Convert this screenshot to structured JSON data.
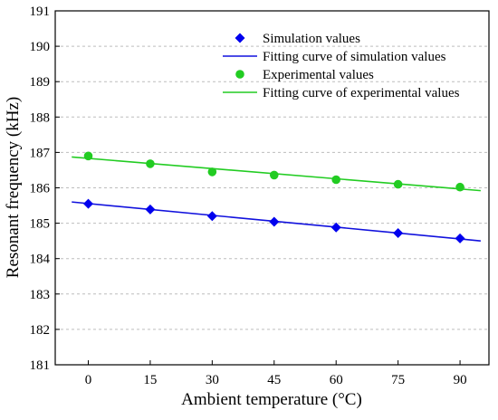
{
  "chart_data": {
    "type": "line",
    "xlabel": "Ambient temperature (°C)",
    "ylabel": "Resonant frequency (kHz)",
    "xlim": [
      -8,
      97
    ],
    "ylim": [
      181,
      191
    ],
    "x_ticks": [
      0,
      15,
      30,
      45,
      60,
      75,
      90
    ],
    "y_ticks": [
      181,
      182,
      183,
      184,
      185,
      186,
      187,
      188,
      189,
      190,
      191
    ],
    "grid": "horizontal dashed",
    "legend_position": "top-right",
    "series": [
      {
        "name": "Simulation values",
        "kind": "scatter",
        "marker": "diamond",
        "color": "#0000ee",
        "x": [
          0,
          15,
          30,
          45,
          60,
          75,
          90
        ],
        "y": [
          185.55,
          185.39,
          185.2,
          185.04,
          184.88,
          184.72,
          184.57
        ]
      },
      {
        "name": "Fitting curve of simulation values",
        "kind": "line",
        "color": "#1111dd",
        "x": [
          -4,
          95
        ],
        "y": [
          185.6,
          184.5
        ]
      },
      {
        "name": "Experimental values",
        "kind": "scatter",
        "marker": "circle",
        "color": "#22cc22",
        "x": [
          0,
          15,
          30,
          45,
          60,
          75,
          90
        ],
        "y": [
          186.9,
          186.68,
          186.45,
          186.36,
          186.23,
          186.1,
          186.02
        ]
      },
      {
        "name": "Fitting curve of experimental values",
        "kind": "line",
        "color": "#22cc22",
        "x": [
          -4,
          95
        ],
        "y": [
          186.87,
          185.92
        ]
      }
    ]
  }
}
